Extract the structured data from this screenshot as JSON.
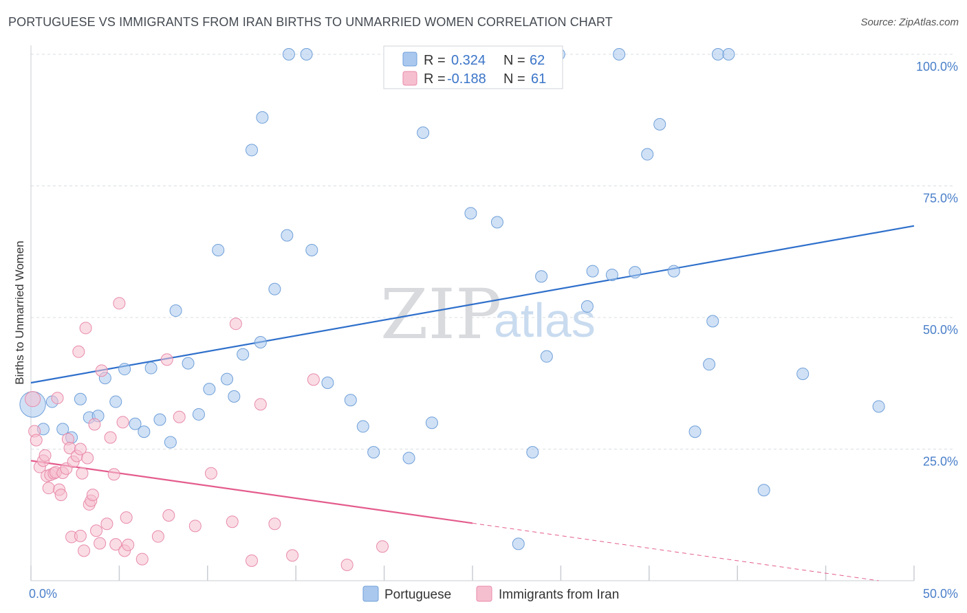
{
  "title": "PORTUGUESE VS IMMIGRANTS FROM IRAN BIRTHS TO UNMARRIED WOMEN CORRELATION CHART",
  "source": "Source: ZipAtlas.com",
  "colors": {
    "portuguese_fill": "#aac8ee",
    "portuguese_stroke": "#6f9fd8",
    "portuguese_line": "#2e6fcb",
    "iran_fill": "#f6bfd0",
    "iran_stroke": "#e88aa9",
    "iran_line": "#e45b8c",
    "grid": "#d9dce0",
    "tick_text": "#4a7fc9"
  },
  "legend": {
    "rows": [
      {
        "r_label": "R =",
        "r_value": "0.324",
        "n_label": "N =",
        "n_value": "62"
      },
      {
        "r_label": "R =",
        "r_value": "-0.188",
        "n_label": "N =",
        "n_value": "61"
      }
    ]
  },
  "chart_data": {
    "type": "scatter",
    "title": "PORTUGUESE VS IMMIGRANTS FROM IRAN BIRTHS TO UNMARRIED WOMEN CORRELATION CHART",
    "xlabel": "",
    "ylabel": "Births to Unmarried Women",
    "xlim": [
      0,
      50
    ],
    "ylim": [
      0,
      100
    ],
    "x_tick_labels": [
      "0.0%",
      "50.0%"
    ],
    "y_tick_labels": [
      "25.0%",
      "50.0%",
      "75.0%",
      "100.0%"
    ],
    "y_tick_values": [
      25,
      50,
      75,
      100
    ],
    "x_tick_marks": [
      0,
      5,
      10,
      15,
      20,
      25,
      30,
      35,
      40,
      45,
      50
    ],
    "grid": true,
    "watermark": {
      "zip": "ZIP",
      "atlas": "atlas"
    },
    "series": [
      {
        "name": "Portuguese",
        "trend": {
          "x": [
            0,
            50
          ],
          "y": [
            37.6,
            67.4
          ],
          "solid_to": 50
        },
        "points": [
          [
            0.1,
            33.5,
            2.2
          ],
          [
            0.7,
            28.8,
            1
          ],
          [
            1.8,
            28.8,
            1
          ],
          [
            2.3,
            27.2,
            1
          ],
          [
            2.8,
            34.5,
            1
          ],
          [
            3.3,
            31.0,
            1
          ],
          [
            3.8,
            31.3,
            1
          ],
          [
            4.2,
            38.5,
            1
          ],
          [
            4.8,
            34.0,
            1
          ],
          [
            5.3,
            40.2,
            1
          ],
          [
            5.9,
            29.8,
            1
          ],
          [
            6.4,
            28.3,
            1
          ],
          [
            6.8,
            40.4,
            1
          ],
          [
            7.3,
            30.6,
            1
          ],
          [
            7.9,
            26.3,
            1
          ],
          [
            8.2,
            51.3,
            1
          ],
          [
            8.9,
            41.3,
            1
          ],
          [
            9.5,
            31.6,
            1
          ],
          [
            10.1,
            36.4,
            1
          ],
          [
            10.6,
            62.8,
            1
          ],
          [
            11.1,
            38.3,
            1
          ],
          [
            11.5,
            35.0,
            1
          ],
          [
            12.0,
            43.0,
            1
          ],
          [
            12.5,
            81.8,
            1
          ],
          [
            13.0,
            45.3,
            1
          ],
          [
            13.1,
            88.0,
            1
          ],
          [
            13.8,
            55.4,
            1
          ],
          [
            14.5,
            65.6,
            1
          ],
          [
            14.6,
            100.0,
            1
          ],
          [
            15.6,
            100.0,
            1
          ],
          [
            15.9,
            62.8,
            1
          ],
          [
            16.8,
            37.6,
            1
          ],
          [
            18.1,
            34.3,
            1
          ],
          [
            18.8,
            29.3,
            1
          ],
          [
            19.4,
            24.4,
            1
          ],
          [
            21.4,
            23.3,
            1
          ],
          [
            22.2,
            85.1,
            1
          ],
          [
            22.7,
            30.0,
            1
          ],
          [
            24.9,
            69.8,
            1
          ],
          [
            26.4,
            68.1,
            1
          ],
          [
            27.6,
            7.0,
            1
          ],
          [
            28.4,
            24.4,
            1
          ],
          [
            28.9,
            57.8,
            1
          ],
          [
            29.2,
            42.6,
            1
          ],
          [
            29.9,
            100.0,
            1
          ],
          [
            31.5,
            52.1,
            1
          ],
          [
            31.8,
            58.8,
            1
          ],
          [
            32.9,
            58.1,
            1
          ],
          [
            33.3,
            100.0,
            1
          ],
          [
            34.2,
            58.6,
            1
          ],
          [
            34.9,
            81.0,
            1
          ],
          [
            35.6,
            86.7,
            1
          ],
          [
            36.4,
            58.8,
            1
          ],
          [
            37.6,
            28.3,
            1
          ],
          [
            38.4,
            41.1,
            1
          ],
          [
            38.6,
            49.3,
            1
          ],
          [
            38.9,
            100.0,
            1
          ],
          [
            39.5,
            100.0,
            1
          ],
          [
            41.5,
            17.2,
            1
          ],
          [
            43.7,
            39.3,
            1
          ],
          [
            48.0,
            33.1,
            1
          ],
          [
            1.2,
            34.0,
            1
          ]
        ]
      },
      {
        "name": "Immigrants from Iran",
        "trend": {
          "x": [
            0,
            48.0
          ],
          "y": [
            22.8,
            0
          ],
          "solid_to": 25.0
        },
        "points": [
          [
            0.1,
            34.5,
            1.3
          ],
          [
            0.2,
            28.4,
            1
          ],
          [
            0.3,
            26.7,
            1
          ],
          [
            0.5,
            21.6,
            1
          ],
          [
            0.7,
            22.8,
            1
          ],
          [
            0.8,
            23.8,
            1
          ],
          [
            0.9,
            19.9,
            1
          ],
          [
            1.0,
            17.6,
            1
          ],
          [
            1.1,
            20.1,
            1
          ],
          [
            1.3,
            20.4,
            1
          ],
          [
            1.4,
            20.6,
            1
          ],
          [
            1.5,
            34.7,
            1
          ],
          [
            1.6,
            17.3,
            1
          ],
          [
            1.7,
            16.3,
            1
          ],
          [
            1.8,
            20.5,
            1
          ],
          [
            2.0,
            21.3,
            1
          ],
          [
            2.1,
            26.9,
            1
          ],
          [
            2.2,
            25.2,
            1
          ],
          [
            2.3,
            8.3,
            1
          ],
          [
            2.4,
            22.6,
            1
          ],
          [
            2.6,
            23.7,
            1
          ],
          [
            2.7,
            43.5,
            1
          ],
          [
            2.8,
            25.0,
            1
          ],
          [
            2.8,
            8.5,
            1
          ],
          [
            2.9,
            20.4,
            1
          ],
          [
            3.0,
            5.7,
            1
          ],
          [
            3.1,
            48.0,
            1
          ],
          [
            3.2,
            23.3,
            1
          ],
          [
            3.3,
            14.5,
            1
          ],
          [
            3.4,
            15.2,
            1
          ],
          [
            3.5,
            16.3,
            1
          ],
          [
            3.6,
            29.7,
            1
          ],
          [
            3.7,
            9.5,
            1
          ],
          [
            3.9,
            7.1,
            1
          ],
          [
            4.0,
            39.9,
            1
          ],
          [
            4.3,
            10.8,
            1
          ],
          [
            4.5,
            27.2,
            1
          ],
          [
            4.7,
            20.2,
            1
          ],
          [
            4.8,
            6.9,
            1
          ],
          [
            5.0,
            52.7,
            1
          ],
          [
            5.2,
            30.1,
            1
          ],
          [
            5.3,
            5.7,
            1
          ],
          [
            5.4,
            12.0,
            1
          ],
          [
            5.5,
            6.8,
            1
          ],
          [
            6.3,
            4.1,
            1
          ],
          [
            7.2,
            8.4,
            1
          ],
          [
            7.7,
            42.0,
            1
          ],
          [
            7.8,
            12.4,
            1
          ],
          [
            8.4,
            31.1,
            1
          ],
          [
            9.3,
            10.4,
            1
          ],
          [
            10.2,
            20.4,
            1
          ],
          [
            11.4,
            11.2,
            1
          ],
          [
            11.6,
            48.8,
            1
          ],
          [
            12.5,
            3.8,
            1
          ],
          [
            13.0,
            33.5,
            1
          ],
          [
            13.8,
            10.8,
            1
          ],
          [
            14.8,
            4.8,
            1
          ],
          [
            16.0,
            38.2,
            1
          ],
          [
            17.9,
            3.0,
            1
          ],
          [
            19.9,
            6.5,
            1
          ],
          [
            4.6,
            2.7,
            0
          ]
        ]
      }
    ]
  },
  "bottom_legend": [
    "Portuguese",
    "Immigrants from Iran"
  ]
}
